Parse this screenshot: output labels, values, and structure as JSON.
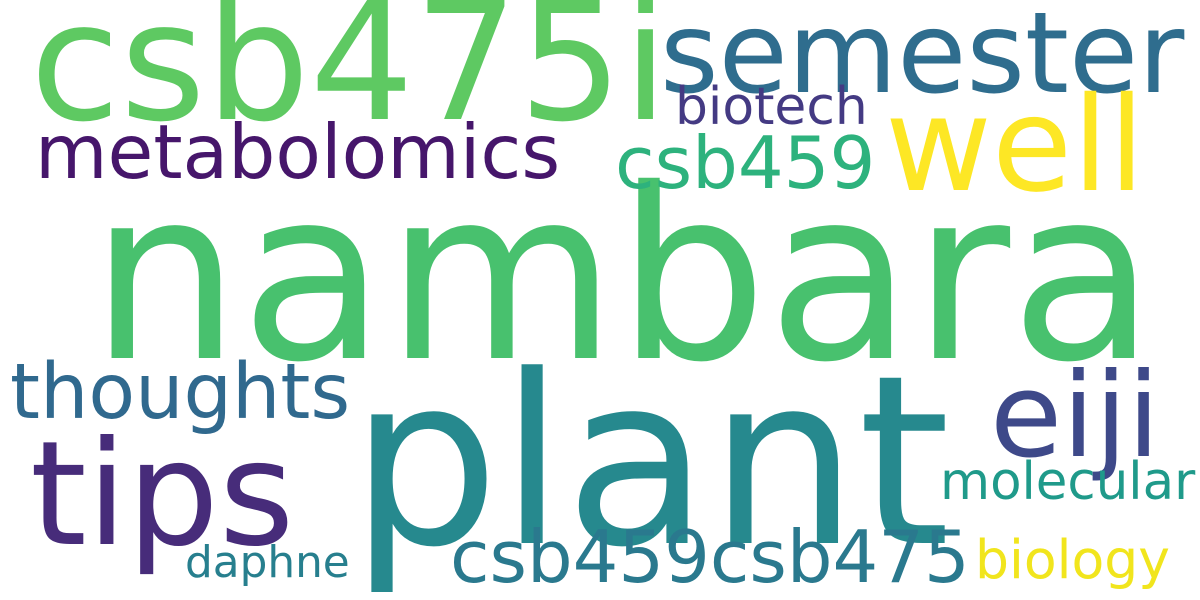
{
  "words": [
    {
      "text": "nambara",
      "color": "#48c16e"
    },
    {
      "text": "plant",
      "color": "#26898e"
    },
    {
      "text": "csb475i",
      "color": "#5ec962"
    },
    {
      "text": "semester",
      "color": "#2f6d8e"
    },
    {
      "text": "well",
      "color": "#fde725"
    },
    {
      "text": "tips",
      "color": "#472c7a"
    },
    {
      "text": "metabolomics",
      "color": "#46166b"
    },
    {
      "text": "csb459csb475",
      "color": "#2a798e"
    },
    {
      "text": "thoughts",
      "color": "#30698e"
    },
    {
      "text": "csb459",
      "color": "#2db27d"
    },
    {
      "text": "eiji",
      "color": "#3e4989"
    },
    {
      "text": "biotech",
      "color": "#443a83"
    },
    {
      "text": "molecular",
      "color": "#1f9a8a"
    },
    {
      "text": "daphne",
      "color": "#277f8e"
    },
    {
      "text": "biology",
      "color": "#f1e51d"
    }
  ]
}
